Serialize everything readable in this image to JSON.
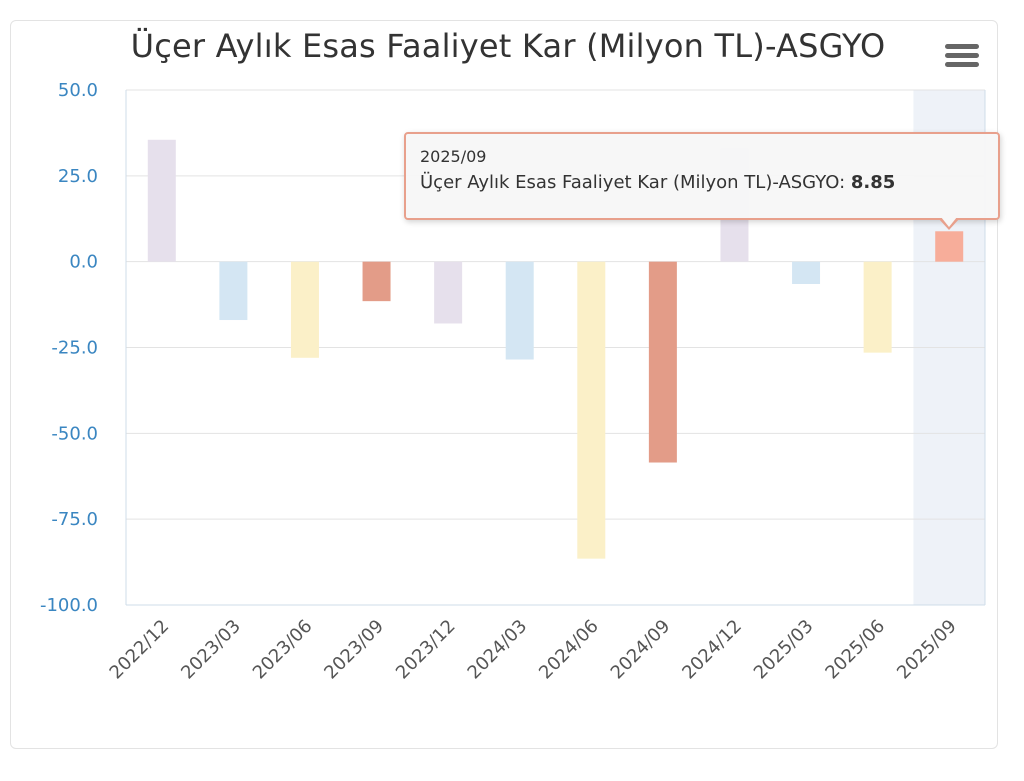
{
  "chart_data": {
    "type": "bar",
    "title": "Üçer Aylık Esas Faaliyet Kar (Milyon TL)-ASGYO",
    "categories": [
      "2022/12",
      "2023/03",
      "2023/06",
      "2023/09",
      "2023/12",
      "2024/03",
      "2024/06",
      "2024/09",
      "2024/12",
      "2025/03",
      "2025/06",
      "2025/09"
    ],
    "values": [
      35.5,
      -17,
      -28,
      -11.5,
      -18,
      -28.5,
      -86.5,
      -58.5,
      33,
      -6.5,
      -26.5,
      8.85
    ],
    "colors": [
      "#e6e0ec",
      "#d4e6f3",
      "#fbf0c8",
      "#e39c88",
      "#e6e0ec",
      "#d4e6f3",
      "#fbf0c8",
      "#e39c88",
      "#e6e0ec",
      "#d4e6f3",
      "#fbf0c8",
      "#f7ad9a"
    ],
    "ylim": [
      -100,
      50
    ],
    "yticks": [
      "50.0",
      "25.0",
      "0.0",
      "-25.0",
      "-50.0",
      "-75.0",
      "-100.0"
    ],
    "ytick_values": [
      50,
      25,
      0,
      -25,
      -50,
      -75,
      -100
    ],
    "grid": true,
    "highlighted_category": "2025/09"
  },
  "tooltip": {
    "category": "2025/09",
    "series_label": "Üçer Aylık Esas Faaliyet Kar (Milyon TL)-ASGYO: ",
    "value": "8.85"
  },
  "icons": {
    "menu": "hamburger-menu-icon"
  }
}
